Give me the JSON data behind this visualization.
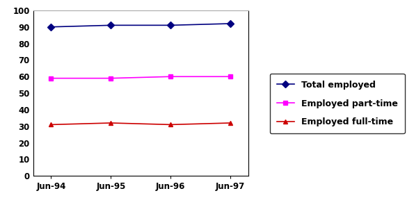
{
  "x_labels": [
    "Jun-94",
    "Jun-95",
    "Jun-96",
    "Jun-97"
  ],
  "x_values": [
    0,
    1,
    2,
    3
  ],
  "total_employed": [
    90,
    91,
    91,
    92
  ],
  "employed_part_time": [
    59,
    59,
    60,
    60
  ],
  "employed_full_time": [
    31,
    32,
    31,
    32
  ],
  "total_color": "#000080",
  "part_time_color": "#ff00ff",
  "full_time_color": "#cc0000",
  "ylim": [
    0,
    100
  ],
  "yticks": [
    0,
    10,
    20,
    30,
    40,
    50,
    60,
    70,
    80,
    90,
    100
  ],
  "legend_labels": [
    "Total employed",
    "Employed part-time",
    "Employed full-time"
  ],
  "background_color": "#ffffff",
  "top_spine_color": "#aaaaaa",
  "axis_color": "#000000"
}
